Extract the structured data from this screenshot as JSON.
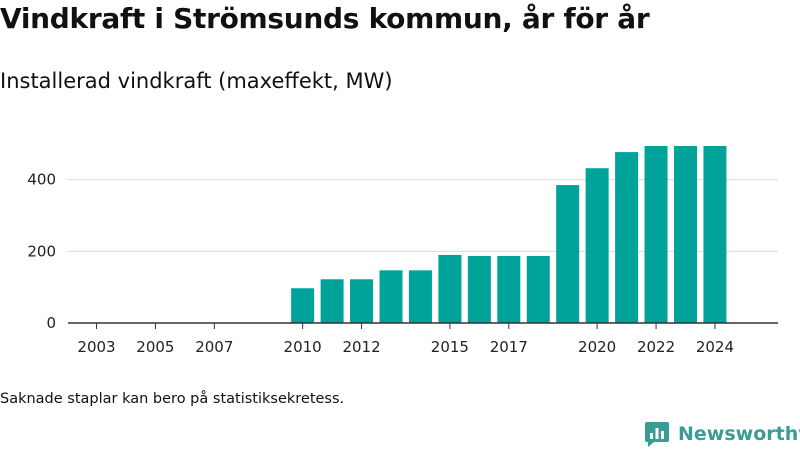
{
  "header": {
    "title": "Vindkraft i Strömsunds kommun, år för år",
    "subtitle": "Installerad vindkraft (maxeffekt, MW)"
  },
  "footer": {
    "note": "Saknade staplar kan bero på statistiksekretess.",
    "brand_name": "Newsworthy",
    "brand_icon": "newsworthy-logo-icon"
  },
  "colors": {
    "bar": "#00a39a",
    "grid": "#d9d9d9",
    "axis": "#333333",
    "brand": "#3a9c95"
  },
  "chart_data": {
    "type": "bar",
    "title": "Vindkraft i Strömsunds kommun, år för år",
    "ylabel": "Installerad vindkraft (maxeffekt, MW)",
    "xlabel": "",
    "categories": [
      "2003",
      "2004",
      "2005",
      "2006",
      "2007",
      "2008",
      "2009",
      "2010",
      "2011",
      "2012",
      "2013",
      "2014",
      "2015",
      "2016",
      "2017",
      "2018",
      "2019",
      "2020",
      "2021",
      "2022",
      "2023",
      "2024"
    ],
    "values": [
      null,
      null,
      null,
      null,
      null,
      null,
      null,
      97,
      122,
      122,
      147,
      147,
      190,
      187,
      187,
      187,
      385,
      432,
      477,
      494,
      494,
      494
    ],
    "xticks": [
      "2003",
      "2005",
      "2007",
      "2010",
      "2012",
      "2015",
      "2017",
      "2020",
      "2022",
      "2024"
    ],
    "yticks": [
      0,
      200,
      400
    ],
    "ylim": [
      0,
      520
    ],
    "grid": true
  }
}
